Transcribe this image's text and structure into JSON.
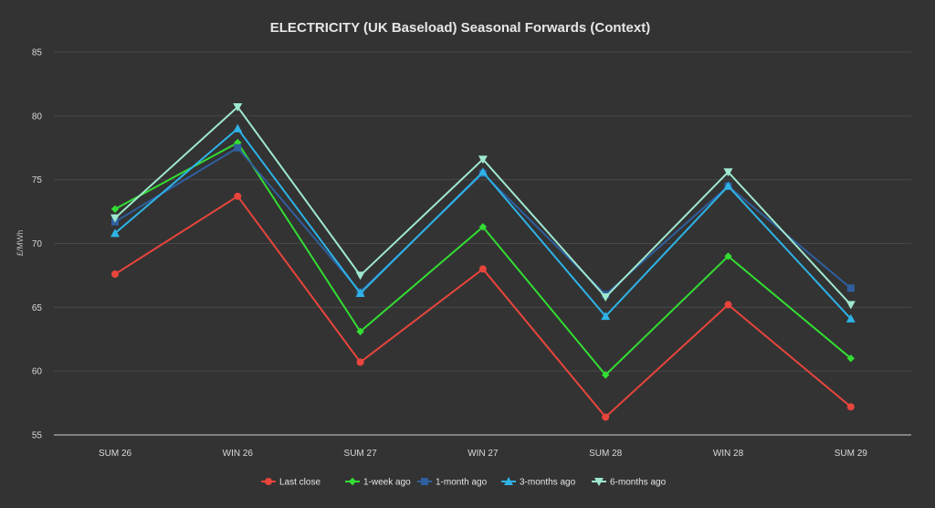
{
  "chart_data": {
    "type": "line",
    "title": "ELECTRICITY (UK Baseload) Seasonal Forwards (Context)",
    "xlabel": "",
    "ylabel": "£/MWh",
    "categories": [
      "SUM 26",
      "WIN 26",
      "SUM 27",
      "WIN 27",
      "SUM 28",
      "WIN 28",
      "SUM 29"
    ],
    "ylim": [
      55,
      85
    ],
    "yticks": [
      "55",
      "60",
      "65",
      "70",
      "75",
      "80",
      "85"
    ],
    "grid": true,
    "legend_position": "bottom-center",
    "series": [
      {
        "name": "Last close",
        "color": "#e8453c",
        "marker": "circle",
        "values": [
          67.6,
          73.7,
          60.7,
          68.0,
          56.4,
          65.2,
          57.2
        ]
      },
      {
        "name": "1-week ago",
        "color": "#33dd33",
        "marker": "diamond",
        "values": [
          72.7,
          77.9,
          63.1,
          71.3,
          59.7,
          69.0,
          61.0
        ]
      },
      {
        "name": "1-month ago",
        "color": "#2f5f9e",
        "marker": "square",
        "values": [
          71.7,
          77.5,
          66.2,
          75.5,
          66.0,
          74.5,
          66.5
        ]
      },
      {
        "name": "3-months ago",
        "color": "#2eb3e6",
        "marker": "triangle",
        "values": [
          70.8,
          79.0,
          66.1,
          75.6,
          64.3,
          74.5,
          64.1
        ]
      },
      {
        "name": "6-months ago",
        "color": "#9fe8cf",
        "marker": "triangle-down",
        "values": [
          72.0,
          80.7,
          67.5,
          76.6,
          65.8,
          75.6,
          65.2
        ]
      }
    ]
  }
}
